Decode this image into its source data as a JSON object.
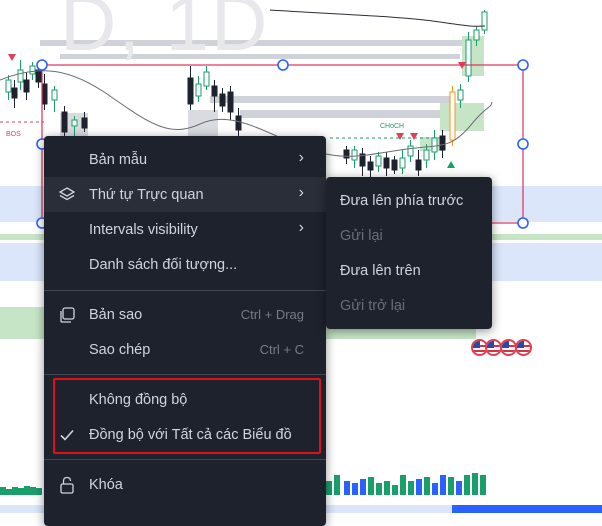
{
  "main_menu": {
    "items": [
      {
        "label": "Bản mẫu",
        "has_submenu": true,
        "icon": ""
      },
      {
        "label": "Thứ tự Trực quan",
        "has_submenu": true,
        "icon": "layers-icon",
        "highlighted": true
      },
      {
        "label": "Intervals visibility",
        "has_submenu": true,
        "icon": ""
      },
      {
        "label": "Danh sách đối tượng...",
        "has_submenu": false,
        "icon": ""
      },
      {
        "label": "Bản sao",
        "shortcut": "Ctrl + Drag",
        "icon": "clone-icon"
      },
      {
        "label": "Sao chép",
        "shortcut": "Ctrl + C",
        "icon": ""
      },
      {
        "label": "Không đồng bộ",
        "icon": ""
      },
      {
        "label": "Đồng bộ với Tất cả các Biểu đồ",
        "icon": "checkmark-icon",
        "checked": true
      },
      {
        "label": "Khóa",
        "icon": "lock-icon"
      }
    ]
  },
  "sub_menu": {
    "items": [
      {
        "label": "Đưa lên phía trước",
        "enabled": true
      },
      {
        "label": "Gửi lại",
        "enabled": false
      },
      {
        "label": "Đưa lên trên",
        "enabled": true
      },
      {
        "label": "Gửi trở lại",
        "enabled": false
      }
    ]
  },
  "chart": {
    "bos_label": "BOS",
    "choch_label": "CHoCH",
    "watermark": "D, 1D",
    "colors": {
      "bull": "#1a9e6a",
      "bear": "#1e222d",
      "highlight_candle": "#f7931a",
      "selection": "#e0305a",
      "handle": "#2962ff",
      "menu_bg": "#1e222d",
      "annotation_box": "#e0101a"
    }
  }
}
